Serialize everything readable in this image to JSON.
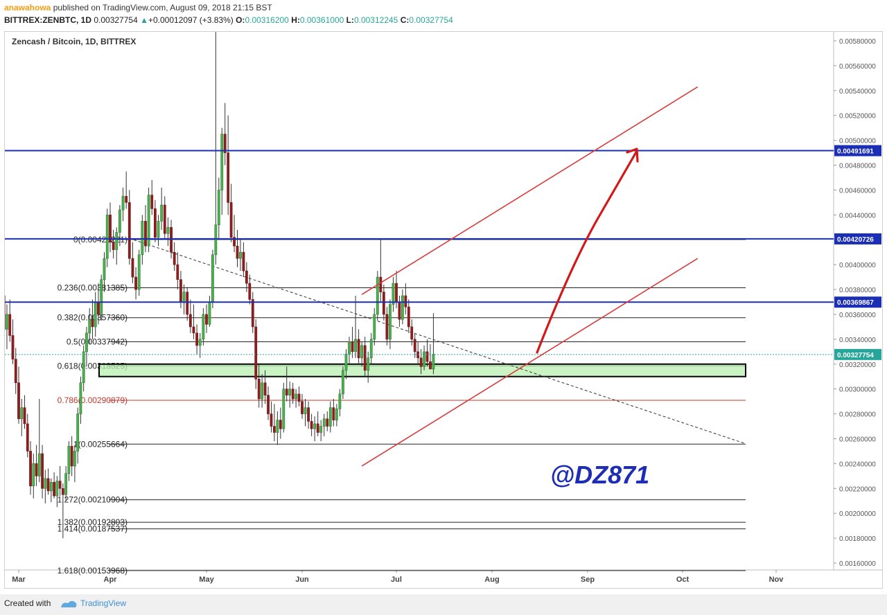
{
  "header": {
    "author": "anawahowa",
    "published": " published on TradingView.com, August 09, 2018 21:15 BST",
    "symbol": "BITTREX:ZENBTC, 1D",
    "last": "0.00327754",
    "change": "+0.00012097 (+3.83%)",
    "ohlc": {
      "o_label": "O:",
      "o": "0.00316200",
      "h_label": "H:",
      "h": "0.00361000",
      "l_label": "L:",
      "l": "0.00312245",
      "c_label": "C:",
      "c": "0.00327754"
    }
  },
  "footer": {
    "created_with": "Created with",
    "brand": "TradingView"
  },
  "chart_data": {
    "type": "candlestick",
    "title": "Zencash / Bitcoin, 1D, BITTREX",
    "watermark": "@DZ871",
    "ylim": [
      0.0015,
      0.0059
    ],
    "y_ticks": [
      "0.00580000",
      "0.00560000",
      "0.00540000",
      "0.00520000",
      "0.00500000",
      "0.00480000",
      "0.00460000",
      "0.00440000",
      "0.00420000",
      "0.00400000",
      "0.00380000",
      "0.00360000",
      "0.00340000",
      "0.00320000",
      "0.00300000",
      "0.00280000",
      "0.00260000",
      "0.00240000",
      "0.00220000",
      "0.00200000",
      "0.00180000",
      "0.00160000"
    ],
    "x_ticks": [
      "Mar",
      "Apr",
      "May",
      "Jun",
      "Jul",
      "Aug",
      "Sep",
      "Oct",
      "Nov"
    ],
    "price_labels": [
      {
        "value": "0.00491691",
        "color": "#1a2fb5"
      },
      {
        "value": "0.00420726",
        "color": "#1a2fb5"
      },
      {
        "value": "0.00369867",
        "color": "#1a2fb5"
      },
      {
        "value": "0.00327754",
        "color": "#26a69a"
      }
    ],
    "horizontal_lines": [
      0.00491691,
      0.00420726,
      0.00369867
    ],
    "fibonacci": [
      {
        "label": "0(0.00420221)",
        "value": 0.00420221
      },
      {
        "label": "0.236(0.00381385)",
        "value": 0.00381385
      },
      {
        "label": "0.382(0.00357360)",
        "value": 0.0035736
      },
      {
        "label": "0.5(0.00337942)",
        "value": 0.00337942
      },
      {
        "label": "0.618(0.00318525)",
        "value": 0.00318525
      },
      {
        "label": "0.786(0.00290879)",
        "value": 0.00290879,
        "color": "#c0392b"
      },
      {
        "label": "1(0.00255664)",
        "value": 0.00255664
      },
      {
        "label": "1.272(0.00210904)",
        "value": 0.00210904
      },
      {
        "label": "1.382(0.00192803)",
        "value": 0.00192803
      },
      {
        "label": "1.414(0.00187537)",
        "value": 0.00187537
      },
      {
        "label": "1.618(0.00153968)",
        "value": 0.00153968
      }
    ],
    "support_zone": [
      0.0031,
      0.0032
    ],
    "channel": {
      "upper": [
        [
          0.00376,
          "2018-06-20"
        ],
        [
          0.00543,
          "2018-10-06"
        ]
      ],
      "lower": [
        [
          0.00238,
          "2018-06-20"
        ],
        [
          0.00405,
          "2018-10-06"
        ]
      ]
    },
    "candles_ohlc": [
      [
        0.0036,
        0.00372,
        0.00349,
        0.00356
      ],
      [
        0.00356,
        0.00388,
        0.00344,
        0.00365
      ],
      [
        0.00365,
        0.00392,
        0.00352,
        0.00375
      ],
      [
        0.00375,
        0.00385,
        0.0034,
        0.00348
      ],
      [
        0.00348,
        0.00368,
        0.00332,
        0.0036
      ],
      [
        0.0036,
        0.00372,
        0.00338,
        0.00343
      ],
      [
        0.00343,
        0.00356,
        0.0032,
        0.00324
      ],
      [
        0.00324,
        0.00333,
        0.00296,
        0.00305
      ],
      [
        0.00305,
        0.00318,
        0.00272,
        0.00276
      ],
      [
        0.00276,
        0.00292,
        0.00262,
        0.00285
      ],
      [
        0.00285,
        0.00295,
        0.00268,
        0.00272
      ],
      [
        0.00272,
        0.0028,
        0.00245,
        0.0025
      ],
      [
        0.0025,
        0.00258,
        0.00215,
        0.00222
      ],
      [
        0.00222,
        0.00248,
        0.00212,
        0.0024
      ],
      [
        0.0024,
        0.00255,
        0.00222,
        0.0023
      ],
      [
        0.0023,
        0.00292,
        0.00225,
        0.00248
      ],
      [
        0.00248,
        0.00255,
        0.00212,
        0.0022
      ],
      [
        0.0022,
        0.00235,
        0.00208,
        0.00228
      ],
      [
        0.00228,
        0.00236,
        0.00215,
        0.00218
      ],
      [
        0.00218,
        0.00228,
        0.00209,
        0.00225
      ],
      [
        0.00225,
        0.00233,
        0.00212,
        0.00214
      ],
      [
        0.00214,
        0.0023,
        0.00205,
        0.00226
      ],
      [
        0.00226,
        0.00238,
        0.00214,
        0.0022
      ],
      [
        0.0022,
        0.00224,
        0.0018,
        0.00215
      ],
      [
        0.00215,
        0.00238,
        0.0021,
        0.00232
      ],
      [
        0.00232,
        0.00258,
        0.00226,
        0.00254
      ],
      [
        0.00254,
        0.00262,
        0.0023,
        0.00238
      ],
      [
        0.00238,
        0.00255,
        0.00225,
        0.0025
      ],
      [
        0.0025,
        0.00285,
        0.0024,
        0.0028
      ],
      [
        0.0028,
        0.0031,
        0.00272,
        0.00305
      ],
      [
        0.00305,
        0.00335,
        0.00298,
        0.0033
      ],
      [
        0.0033,
        0.0035,
        0.00318,
        0.00345
      ],
      [
        0.00345,
        0.00365,
        0.00336,
        0.00356
      ],
      [
        0.00356,
        0.00372,
        0.0034,
        0.0035
      ],
      [
        0.0035,
        0.00378,
        0.00342,
        0.0037
      ],
      [
        0.0037,
        0.00385,
        0.00352,
        0.0036
      ],
      [
        0.0036,
        0.00392,
        0.00355,
        0.00388
      ],
      [
        0.00388,
        0.0041,
        0.00378,
        0.00405
      ],
      [
        0.00405,
        0.00445,
        0.00398,
        0.0044
      ],
      [
        0.0044,
        0.0045,
        0.0041,
        0.00418
      ],
      [
        0.00418,
        0.00428,
        0.00405,
        0.00412
      ],
      [
        0.00412,
        0.0043,
        0.004,
        0.00426
      ],
      [
        0.00426,
        0.00448,
        0.00415,
        0.00444
      ],
      [
        0.00444,
        0.00462,
        0.00435,
        0.00455
      ],
      [
        0.00455,
        0.00475,
        0.00445,
        0.0045
      ],
      [
        0.0045,
        0.0046,
        0.004,
        0.00405
      ],
      [
        0.00405,
        0.00418,
        0.00385,
        0.0039
      ],
      [
        0.0039,
        0.00398,
        0.00372,
        0.0038
      ],
      [
        0.0038,
        0.00412,
        0.00375,
        0.00408
      ],
      [
        0.00408,
        0.0044,
        0.004,
        0.00435
      ],
      [
        0.00435,
        0.00448,
        0.0041,
        0.00415
      ],
      [
        0.00415,
        0.00462,
        0.0041,
        0.00456
      ],
      [
        0.00456,
        0.00468,
        0.0044,
        0.00445
      ],
      [
        0.00445,
        0.00452,
        0.00418,
        0.00422
      ],
      [
        0.00422,
        0.0044,
        0.00415,
        0.00435
      ],
      [
        0.00435,
        0.00462,
        0.00428,
        0.00448
      ],
      [
        0.00448,
        0.00455,
        0.0042,
        0.00425
      ],
      [
        0.00425,
        0.00438,
        0.00415,
        0.0043
      ],
      [
        0.0043,
        0.00436,
        0.00405,
        0.0041
      ],
      [
        0.0041,
        0.00418,
        0.00395,
        0.004
      ],
      [
        0.004,
        0.0041,
        0.0038,
        0.00388
      ],
      [
        0.00388,
        0.00395,
        0.00365,
        0.0037
      ],
      [
        0.0037,
        0.00384,
        0.0036,
        0.00378
      ],
      [
        0.00378,
        0.00382,
        0.00355,
        0.0036
      ],
      [
        0.0036,
        0.00372,
        0.00345,
        0.0035
      ],
      [
        0.0035,
        0.00368,
        0.0034,
        0.00345
      ],
      [
        0.00345,
        0.00352,
        0.00328,
        0.00335
      ],
      [
        0.00335,
        0.00345,
        0.00325,
        0.0034
      ],
      [
        0.0034,
        0.00365,
        0.00335,
        0.0036
      ],
      [
        0.0036,
        0.00368,
        0.00345,
        0.00352
      ],
      [
        0.00352,
        0.00375,
        0.0035,
        0.0037
      ],
      [
        0.0037,
        0.00412,
        0.00365,
        0.00408
      ],
      [
        0.00408,
        0.0059,
        0.004,
        0.00432
      ],
      [
        0.00432,
        0.0047,
        0.0042,
        0.0046
      ],
      [
        0.0046,
        0.0051,
        0.0044,
        0.00505
      ],
      [
        0.00505,
        0.0053,
        0.0048,
        0.0049
      ],
      [
        0.0049,
        0.0052,
        0.0044,
        0.0045
      ],
      [
        0.0045,
        0.00465,
        0.00418,
        0.00422
      ],
      [
        0.00422,
        0.0044,
        0.0041,
        0.00415
      ],
      [
        0.00415,
        0.00428,
        0.00398,
        0.00405
      ],
      [
        0.00405,
        0.0042,
        0.00395,
        0.0041
      ],
      [
        0.0041,
        0.00418,
        0.0039,
        0.00395
      ],
      [
        0.00395,
        0.00402,
        0.00378,
        0.00385
      ],
      [
        0.00385,
        0.00392,
        0.00368,
        0.00372
      ],
      [
        0.00372,
        0.00378,
        0.00345,
        0.0035
      ],
      [
        0.0035,
        0.00356,
        0.003,
        0.00308
      ],
      [
        0.00308,
        0.0032,
        0.00285,
        0.00292
      ],
      [
        0.00292,
        0.00312,
        0.00285,
        0.00305
      ],
      [
        0.00305,
        0.00315,
        0.00288,
        0.00295
      ],
      [
        0.00295,
        0.00302,
        0.00275,
        0.0028
      ],
      [
        0.0028,
        0.0029,
        0.00265,
        0.0027
      ],
      [
        0.0027,
        0.00288,
        0.00258,
        0.00265
      ],
      [
        0.00265,
        0.00282,
        0.00255,
        0.00275
      ],
      [
        0.00275,
        0.00285,
        0.0026,
        0.00268
      ],
      [
        0.00268,
        0.00305,
        0.00265,
        0.003
      ],
      [
        0.003,
        0.00318,
        0.0029,
        0.00295
      ],
      [
        0.00295,
        0.00306,
        0.00285,
        0.003
      ],
      [
        0.003,
        0.00305,
        0.00288,
        0.00292
      ],
      [
        0.00292,
        0.003,
        0.00285,
        0.00296
      ],
      [
        0.00296,
        0.00302,
        0.00286,
        0.0029
      ],
      [
        0.0029,
        0.00296,
        0.00276,
        0.0028
      ],
      [
        0.0028,
        0.00292,
        0.0027,
        0.00285
      ],
      [
        0.00285,
        0.0029,
        0.00268,
        0.00274
      ],
      [
        0.00274,
        0.0028,
        0.00262,
        0.00268
      ],
      [
        0.00268,
        0.00278,
        0.00258,
        0.00272
      ],
      [
        0.00272,
        0.00282,
        0.00262,
        0.00265
      ],
      [
        0.00265,
        0.00275,
        0.00258,
        0.0027
      ],
      [
        0.0027,
        0.0028,
        0.00262,
        0.00276
      ],
      [
        0.00276,
        0.00282,
        0.00266,
        0.0027
      ],
      [
        0.0027,
        0.0029,
        0.00265,
        0.00285
      ],
      [
        0.00285,
        0.00292,
        0.0027,
        0.00275
      ],
      [
        0.00275,
        0.00288,
        0.0027,
        0.00284
      ],
      [
        0.00284,
        0.003,
        0.00278,
        0.00296
      ],
      [
        0.00296,
        0.00318,
        0.00292,
        0.00315
      ],
      [
        0.00315,
        0.00332,
        0.00308,
        0.00328
      ],
      [
        0.00328,
        0.00342,
        0.0032,
        0.00338
      ],
      [
        0.00338,
        0.0035,
        0.00325,
        0.0033
      ],
      [
        0.0033,
        0.00375,
        0.00325,
        0.0034
      ],
      [
        0.0034,
        0.00348,
        0.0032,
        0.00325
      ],
      [
        0.00325,
        0.00338,
        0.00318,
        0.00335
      ],
      [
        0.00335,
        0.00342,
        0.0031,
        0.00315
      ],
      [
        0.00315,
        0.0033,
        0.00305,
        0.00325
      ],
      [
        0.00325,
        0.00345,
        0.0032,
        0.0034
      ],
      [
        0.0034,
        0.00365,
        0.00335,
        0.0036
      ],
      [
        0.0036,
        0.00395,
        0.00355,
        0.0039
      ],
      [
        0.0039,
        0.0042,
        0.0037,
        0.00378
      ],
      [
        0.00378,
        0.00384,
        0.00355,
        0.0036
      ],
      [
        0.0036,
        0.00366,
        0.00335,
        0.0034
      ],
      [
        0.0034,
        0.00372,
        0.00332,
        0.00368
      ],
      [
        0.00368,
        0.0039,
        0.00362,
        0.00385
      ],
      [
        0.00385,
        0.00395,
        0.00365,
        0.0037
      ],
      [
        0.0037,
        0.00375,
        0.0035,
        0.00356
      ],
      [
        0.00356,
        0.0038,
        0.00352,
        0.00375
      ],
      [
        0.00375,
        0.00385,
        0.0036,
        0.00366
      ],
      [
        0.00366,
        0.00372,
        0.00345,
        0.0035
      ],
      [
        0.0035,
        0.00356,
        0.00335,
        0.0034
      ],
      [
        0.0034,
        0.00345,
        0.00325,
        0.0033
      ],
      [
        0.0033,
        0.00338,
        0.0032,
        0.00325
      ],
      [
        0.00325,
        0.00332,
        0.00312,
        0.00318
      ],
      [
        0.00318,
        0.00335,
        0.00315,
        0.0033
      ],
      [
        0.0033,
        0.0034,
        0.00318,
        0.00322
      ],
      [
        0.00322,
        0.00336,
        0.00316,
        0.00316
      ],
      [
        0.00316,
        0.00361,
        0.00312,
        0.00328
      ]
    ]
  }
}
